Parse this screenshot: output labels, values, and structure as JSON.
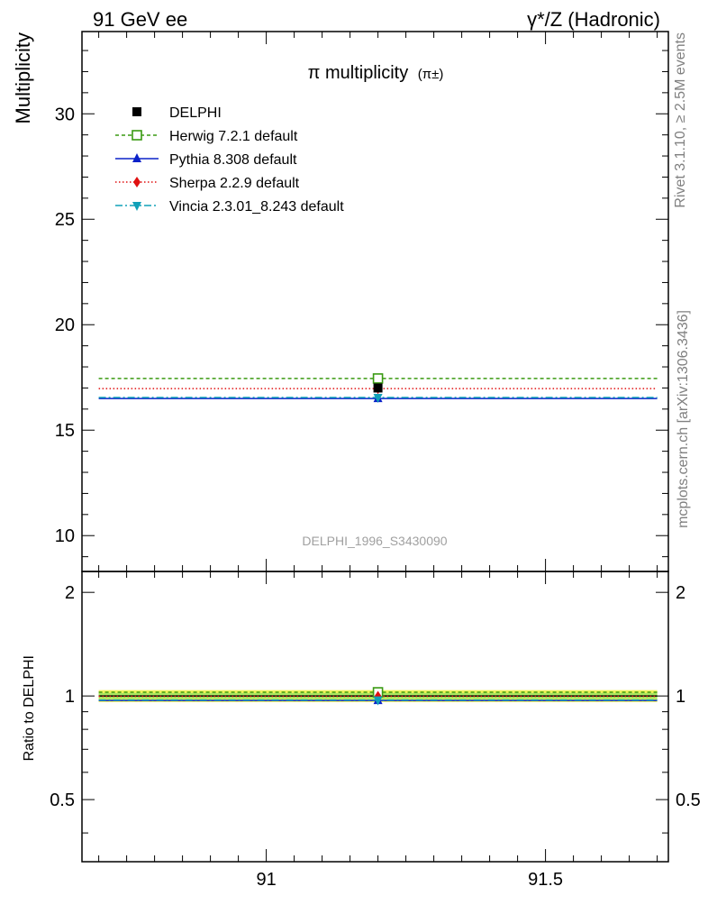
{
  "header": {
    "left": "91 GeV ee",
    "right": "γ*/Z (Hadronic)"
  },
  "side": {
    "rivet": "Rivet 3.1.10, ≥ 2.5M events",
    "mcplots": "mcplots.cern.ch [arXiv:1306.3436]"
  },
  "chart_data": [
    {
      "type": "scatter",
      "title_main": "π multiplicity",
      "title_sub": "(π±)",
      "ylabel": "Multiplicity",
      "watermark": "DELPHI_1996_S3430090",
      "xlim": [
        90.67,
        91.72
      ],
      "ylim": [
        8.3,
        33.9
      ],
      "yticks": [
        10,
        15,
        20,
        25,
        30
      ],
      "x_bin": [
        90.7,
        91.7
      ],
      "x_center": 91.2,
      "series": [
        {
          "name": "DELPHI",
          "y": 17.0,
          "yerr": 0.0,
          "color": "#000000",
          "marker": "square",
          "dash": "solid",
          "is_data": true
        },
        {
          "name": "Herwig 7.2.1 default",
          "y": 17.45,
          "color": "#3a9a12",
          "marker": "open-square",
          "dash": "4,3"
        },
        {
          "name": "Pythia 8.308 default",
          "y": 16.5,
          "color": "#0b22c9",
          "marker": "triangle-up",
          "dash": "solid"
        },
        {
          "name": "Sherpa 2.2.9 default",
          "y": 16.97,
          "color": "#e01010",
          "marker": "diamond",
          "dash": "1.5,2.5"
        },
        {
          "name": "Vincia 2.3.01_8.243 default",
          "y": 16.55,
          "color": "#10a0b8",
          "marker": "triangle-down",
          "dash": "8,3,2,3"
        }
      ]
    },
    {
      "type": "scatter",
      "ylabel": "Ratio to DELPHI",
      "xlim": [
        90.67,
        91.72
      ],
      "ylim": [
        0.33,
        2.3
      ],
      "yticks": [
        0.5,
        1,
        2
      ],
      "ytick_labels": [
        "0.5",
        "1",
        "2"
      ],
      "xticks": [
        91,
        91.5
      ],
      "xtick_labels": [
        "91",
        "91.5"
      ],
      "band_outer": [
        0.96,
        1.04
      ],
      "band_inner": [
        0.98,
        1.02
      ],
      "series": [
        {
          "name": "Herwig 7.2.1 default",
          "y": 1.025
        },
        {
          "name": "Pythia 8.308 default",
          "y": 0.97
        },
        {
          "name": "Sherpa 2.2.9 default",
          "y": 0.998
        },
        {
          "name": "Vincia 2.3.01_8.243 default",
          "y": 0.973
        }
      ]
    }
  ]
}
